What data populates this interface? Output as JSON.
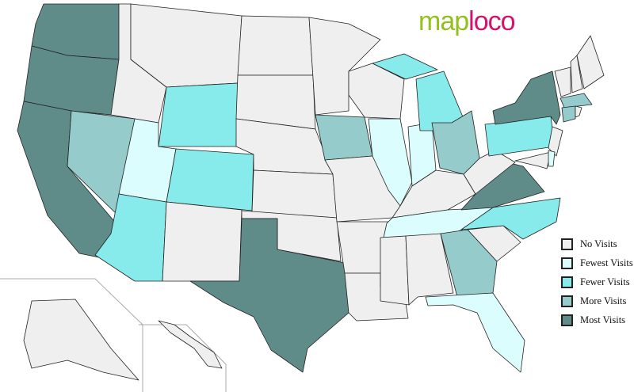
{
  "logo": {
    "part1": "map",
    "part2": "loco",
    "colors": {
      "map": "#93c01f",
      "loco": "#d4126e"
    }
  },
  "legend": [
    {
      "key": "none",
      "label": "No Visits",
      "color": "#efefef"
    },
    {
      "key": "fewest",
      "label": "Fewest Visits",
      "color": "#dcfdfd"
    },
    {
      "key": "fewer",
      "label": "Fewer Visits",
      "color": "#86ebea"
    },
    {
      "key": "more",
      "label": "More Visits",
      "color": "#95cccb"
    },
    {
      "key": "most",
      "label": "Most Visits",
      "color": "#5f8b89"
    }
  ],
  "states": {
    "WA": "most",
    "OR": "most",
    "CA": "most",
    "TX": "most",
    "NY": "most",
    "VA": "most",
    "NV": "more",
    "IA": "more",
    "OH": "more",
    "GA": "more",
    "MA": "more",
    "CT": "more",
    "WY": "fewer",
    "CO": "fewer",
    "AZ": "fewer",
    "MI": "fewer",
    "PA": "fewer",
    "NC": "fewer",
    "UT": "fewest",
    "IL": "fewest",
    "IN": "fewest",
    "TN": "fewest",
    "FL": "fewest",
    "DE": "fewest",
    "ID": "none",
    "MT": "none",
    "NM": "none",
    "ND": "none",
    "SD": "none",
    "NE": "none",
    "KS": "none",
    "OK": "none",
    "MN": "none",
    "MO": "none",
    "AR": "none",
    "LA": "none",
    "WI": "none",
    "KY": "none",
    "MS": "none",
    "AL": "none",
    "SC": "none",
    "WV": "none",
    "MD": "none",
    "NJ": "none",
    "VT": "none",
    "NH": "none",
    "ME": "none",
    "RI": "none",
    "AK": "none",
    "HI": "none"
  }
}
